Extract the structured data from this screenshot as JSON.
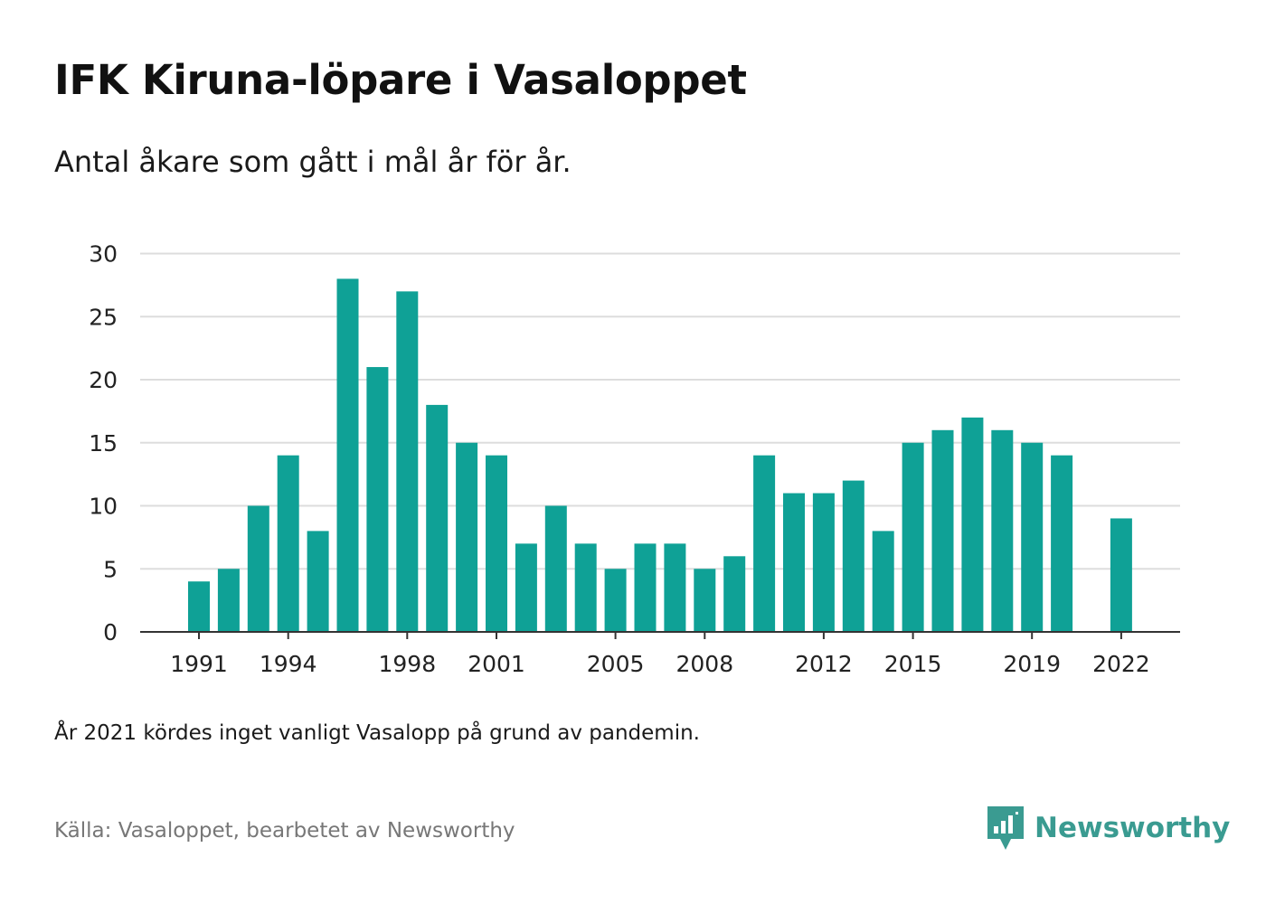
{
  "header": {
    "title": "IFK Kiruna-löpare i Vasaloppet",
    "subtitle": "Antal åkare som gått i mål år för år."
  },
  "footer": {
    "note": "År 2021 kördes inget vanligt Vasalopp på grund av pandemin.",
    "source": "Källa: Vasaloppet, bearbetet av Newsworthy",
    "brand": "Newsworthy"
  },
  "colors": {
    "bar": "#0fa196",
    "grid": "#dddddd",
    "axis": "#333333",
    "brand": "#3a9b91"
  },
  "chart_data": {
    "type": "bar",
    "categories": [
      "1991",
      "1992",
      "1993",
      "1994",
      "1995",
      "1996",
      "1997",
      "1998",
      "1999",
      "2000",
      "2001",
      "2002",
      "2003",
      "2004",
      "2005",
      "2006",
      "2007",
      "2008",
      "2009",
      "2010",
      "2011",
      "2012",
      "2013",
      "2014",
      "2015",
      "2016",
      "2017",
      "2018",
      "2019",
      "2020",
      "2021",
      "2022"
    ],
    "values": [
      4,
      5,
      10,
      14,
      8,
      28,
      21,
      27,
      18,
      15,
      14,
      7,
      10,
      7,
      5,
      7,
      7,
      5,
      6,
      14,
      11,
      11,
      12,
      8,
      15,
      16,
      17,
      16,
      15,
      14,
      null,
      9
    ],
    "x_tick_labels": [
      "1991",
      "1994",
      "1998",
      "2001",
      "2005",
      "2008",
      "2012",
      "2015",
      "2019",
      "2022"
    ],
    "y_ticks": [
      0,
      5,
      10,
      15,
      20,
      25,
      30
    ],
    "ylim": [
      0,
      30
    ],
    "grid": true,
    "legend": "none"
  }
}
